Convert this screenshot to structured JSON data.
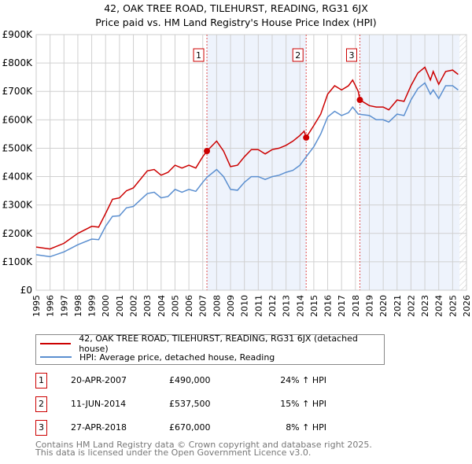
{
  "title": "42, OAK TREE ROAD, TILEHURST, READING, RG31 6JX",
  "subtitle": "Price paid vs. HM Land Registry's House Price Index (HPI)",
  "chart_data": {
    "type": "line",
    "title": "42, OAK TREE ROAD, TILEHURST, READING, RG31 6JX",
    "subtitle": "Price paid vs. HM Land Registry's House Price Index (HPI)",
    "xlim": [
      1995,
      2026
    ],
    "ylim": [
      0,
      900000
    ],
    "grid": true,
    "y_ticks": [
      {
        "v": 0,
        "label": "£0"
      },
      {
        "v": 100000,
        "label": "£100K"
      },
      {
        "v": 200000,
        "label": "£200K"
      },
      {
        "v": 300000,
        "label": "£300K"
      },
      {
        "v": 400000,
        "label": "£400K"
      },
      {
        "v": 500000,
        "label": "£500K"
      },
      {
        "v": 600000,
        "label": "£600K"
      },
      {
        "v": 700000,
        "label": "£700K"
      },
      {
        "v": 800000,
        "label": "£800K"
      },
      {
        "v": 900000,
        "label": "£900K"
      }
    ],
    "x_ticks": [
      "1995",
      "1996",
      "1997",
      "1998",
      "1999",
      "2000",
      "2001",
      "2002",
      "2003",
      "2004",
      "2005",
      "2006",
      "2007",
      "2008",
      "2009",
      "2010",
      "2011",
      "2012",
      "2013",
      "2014",
      "2015",
      "2016",
      "2017",
      "2018",
      "2019",
      "2020",
      "2021",
      "2022",
      "2023",
      "2024",
      "2025",
      "2026"
    ],
    "shaded_ranges": [
      [
        2007.3,
        2014.45
      ],
      [
        2018.32,
        2025.5
      ]
    ],
    "hatched_from": 2025.5,
    "series": [
      {
        "name": "42, OAK TREE ROAD, TILEHURST, READING, RG31 6JX (detached house)",
        "color": "#cc0000",
        "x": [
          1995,
          1996,
          1997,
          1998,
          1999,
          1999.5,
          2000,
          2000.5,
          2001,
          2001.5,
          2002,
          2003,
          2003.5,
          2004,
          2004.5,
          2005,
          2005.5,
          2006,
          2006.5,
          2007,
          2007.3,
          2008,
          2008.5,
          2009,
          2009.5,
          2010,
          2010.5,
          2011,
          2011.5,
          2012,
          2012.5,
          2013,
          2013.5,
          2014,
          2014.3,
          2014.45,
          2015,
          2015.5,
          2016,
          2016.5,
          2017,
          2017.5,
          2017.8,
          2018.2,
          2018.32,
          2019,
          2019.5,
          2020,
          2020.4,
          2021,
          2021.5,
          2022,
          2022.5,
          2023,
          2023.4,
          2023.6,
          2024,
          2024.5,
          2025,
          2025.4
        ],
        "y": [
          152000,
          145000,
          165000,
          200000,
          225000,
          222000,
          270000,
          320000,
          325000,
          350000,
          360000,
          420000,
          425000,
          405000,
          415000,
          440000,
          430000,
          440000,
          430000,
          470000,
          490000,
          525000,
          490000,
          435000,
          440000,
          470000,
          495000,
          495000,
          480000,
          495000,
          500000,
          510000,
          525000,
          545000,
          560000,
          537500,
          580000,
          620000,
          690000,
          720000,
          705000,
          720000,
          740000,
          700000,
          670000,
          650000,
          645000,
          645000,
          635000,
          670000,
          665000,
          720000,
          765000,
          785000,
          740000,
          770000,
          725000,
          770000,
          775000,
          760000
        ]
      },
      {
        "name": "HPI: Average price, detached house, Reading",
        "color": "#5b8fd0",
        "x": [
          1995,
          1996,
          1997,
          1998,
          1999,
          1999.5,
          2000,
          2000.5,
          2001,
          2001.5,
          2002,
          2003,
          2003.5,
          2004,
          2004.5,
          2005,
          2005.5,
          2006,
          2006.5,
          2007,
          2007.3,
          2008,
          2008.5,
          2009,
          2009.5,
          2010,
          2010.5,
          2011,
          2011.5,
          2012,
          2012.5,
          2013,
          2013.5,
          2014,
          2014.45,
          2015,
          2015.5,
          2016,
          2016.5,
          2017,
          2017.5,
          2017.8,
          2018.2,
          2019,
          2019.5,
          2020,
          2020.4,
          2021,
          2021.5,
          2022,
          2022.5,
          2023,
          2023.4,
          2023.6,
          2024,
          2024.5,
          2025,
          2025.4
        ],
        "y": [
          125000,
          118000,
          135000,
          160000,
          180000,
          178000,
          225000,
          260000,
          262000,
          290000,
          295000,
          340000,
          345000,
          325000,
          330000,
          355000,
          345000,
          355000,
          348000,
          380000,
          397000,
          425000,
          400000,
          355000,
          352000,
          380000,
          400000,
          400000,
          390000,
          400000,
          405000,
          415000,
          422000,
          440000,
          470000,
          505000,
          550000,
          610000,
          630000,
          615000,
          625000,
          645000,
          620000,
          615000,
          600000,
          600000,
          592000,
          620000,
          615000,
          670000,
          710000,
          730000,
          690000,
          705000,
          675000,
          720000,
          720000,
          705000
        ]
      }
    ],
    "sales": [
      {
        "num": "1",
        "x": 2007.3,
        "y": 490000,
        "date": "20-APR-2007",
        "price": "£490,000",
        "hpi": "24% ↑ HPI"
      },
      {
        "num": "2",
        "x": 2014.45,
        "y": 537500,
        "date": "11-JUN-2014",
        "price": "£537,500",
        "hpi": "15% ↑ HPI"
      },
      {
        "num": "3",
        "x": 2018.32,
        "y": 670000,
        "date": "27-APR-2018",
        "price": "£670,000",
        "hpi": "8% ↑ HPI"
      }
    ]
  },
  "legend": {
    "property": "42, OAK TREE ROAD, TILEHURST, READING, RG31 6JX (detached house)",
    "hpi": "HPI: Average price, detached house, Reading"
  },
  "footer": {
    "line1": "Contains HM Land Registry data © Crown copyright and database right 2025.",
    "line2": "This data is licensed under the Open Government Licence v3.0."
  }
}
